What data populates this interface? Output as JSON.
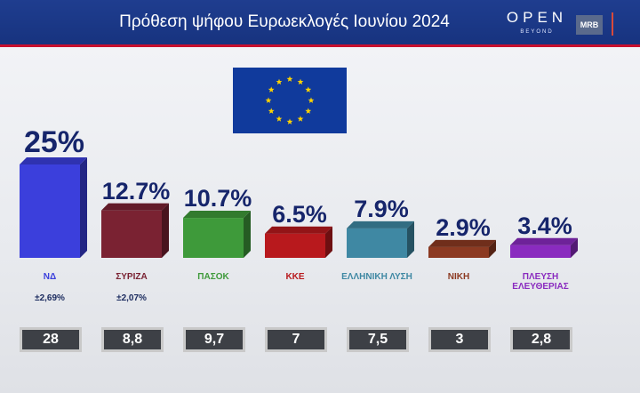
{
  "header": {
    "title": "Πρόθεση ψήφου Ευρωεκλογές Ιουνίου 2024",
    "logo_main": "OPEN",
    "logo_sub": "BEYOND",
    "logo_mrb": "MRB"
  },
  "flag_icon": "eu-flag-icon",
  "chart_data": {
    "type": "bar",
    "title": "Πρόθεση ψήφου Ευρωεκλογές Ιουνίου 2024",
    "categories": [
      "ΝΔ",
      "ΣΥΡΙΖΑ",
      "ΠΑΣΟΚ",
      "ΚΚΕ",
      "ΕΛΛΗΝΙΚΗ ΛΥΣΗ",
      "ΝΙΚΗ",
      "ΠΛΕΥΣΗ ΕΛΕΥΘΕΡΙΑΣ"
    ],
    "values": [
      25,
      12.7,
      10.7,
      6.5,
      7.9,
      2.9,
      3.4
    ],
    "value_labels": [
      "25%",
      "12.7%",
      "10.7%",
      "6.5%",
      "7.9%",
      "2.9%",
      "3.4%"
    ],
    "colors": [
      "#3b3fdc",
      "#7a2232",
      "#3e9a3a",
      "#b8191d",
      "#3f88a3",
      "#8c3a22",
      "#8a2bbf"
    ],
    "party_labels": [
      "ΝΔ",
      "ΣΥΡΙΖΑ",
      "ΠΑΣΟΚ",
      "ΚΚΕ",
      "ΕΛΛΗΝΙΚΗ ΛΥΣΗ",
      "ΝΙΚΗ",
      "ΠΛΕΥΣΗ ΕΛΕΥΘΕΡΙΑΣ"
    ],
    "differences": [
      "±2,69%",
      "±2,07%"
    ],
    "seats": [
      "28",
      "8,8",
      "9,7",
      "7",
      "7,5",
      "3",
      "2,8"
    ]
  }
}
